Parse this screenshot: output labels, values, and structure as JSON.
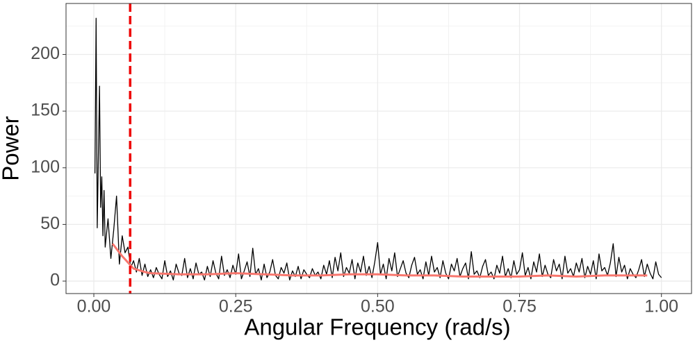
{
  "chart_data": {
    "type": "line",
    "x_label": "Angular Frequency (rad/s)",
    "y_label": "Power",
    "xlim": [
      -0.049,
      1.053
    ],
    "ylim": [
      -11,
      245
    ],
    "xticks": [
      {
        "value": 0,
        "label": "0.00"
      },
      {
        "value": 0.25,
        "label": "0.25"
      },
      {
        "value": 0.5,
        "label": "0.50"
      },
      {
        "value": 0.75,
        "label": "0.75"
      },
      {
        "value": 1,
        "label": "1.00"
      }
    ],
    "yticks": [
      0,
      50,
      100,
      150,
      200
    ],
    "x_minor_ticks": [
      0.125,
      0.375,
      0.625,
      0.875
    ],
    "y_minor_ticks": [
      25,
      75,
      125,
      175,
      225
    ],
    "grid": true,
    "vline": {
      "value": 0.064,
      "color": "#ee0000"
    },
    "series": [
      {
        "color": "#000000",
        "x": [
          0.002,
          0.004,
          0.006,
          0.008,
          0.01,
          0.012,
          0.014,
          0.016,
          0.018,
          0.02,
          0.025,
          0.03,
          0.035,
          0.04,
          0.045,
          0.05,
          0.055,
          0.06,
          0.065,
          0.07,
          0.075,
          0.08,
          0.085,
          0.09,
          0.095,
          0.1,
          0.105,
          0.11,
          0.115,
          0.12,
          0.125,
          0.13,
          0.135,
          0.14,
          0.145,
          0.15,
          0.155,
          0.16,
          0.165,
          0.17,
          0.175,
          0.18,
          0.185,
          0.19,
          0.195,
          0.2,
          0.205,
          0.21,
          0.215,
          0.22,
          0.225,
          0.23,
          0.235,
          0.24,
          0.245,
          0.25,
          0.255,
          0.26,
          0.265,
          0.27,
          0.275,
          0.28,
          0.285,
          0.29,
          0.295,
          0.3,
          0.305,
          0.31,
          0.315,
          0.32,
          0.325,
          0.33,
          0.335,
          0.34,
          0.345,
          0.35,
          0.355,
          0.36,
          0.365,
          0.37,
          0.375,
          0.38,
          0.385,
          0.39,
          0.395,
          0.4,
          0.405,
          0.41,
          0.415,
          0.42,
          0.425,
          0.43,
          0.435,
          0.44,
          0.445,
          0.45,
          0.455,
          0.46,
          0.465,
          0.47,
          0.475,
          0.48,
          0.485,
          0.49,
          0.495,
          0.5,
          0.505,
          0.51,
          0.515,
          0.52,
          0.525,
          0.53,
          0.535,
          0.54,
          0.545,
          0.55,
          0.555,
          0.56,
          0.565,
          0.57,
          0.575,
          0.58,
          0.585,
          0.59,
          0.595,
          0.6,
          0.605,
          0.61,
          0.615,
          0.62,
          0.625,
          0.63,
          0.635,
          0.64,
          0.645,
          0.65,
          0.655,
          0.66,
          0.665,
          0.67,
          0.675,
          0.68,
          0.685,
          0.69,
          0.695,
          0.7,
          0.705,
          0.71,
          0.715,
          0.72,
          0.725,
          0.73,
          0.735,
          0.74,
          0.745,
          0.75,
          0.755,
          0.76,
          0.765,
          0.77,
          0.775,
          0.78,
          0.785,
          0.79,
          0.795,
          0.8,
          0.805,
          0.81,
          0.815,
          0.82,
          0.825,
          0.83,
          0.835,
          0.84,
          0.845,
          0.85,
          0.855,
          0.86,
          0.865,
          0.87,
          0.875,
          0.88,
          0.885,
          0.89,
          0.895,
          0.9,
          0.905,
          0.91,
          0.915,
          0.92,
          0.925,
          0.93,
          0.935,
          0.94,
          0.945,
          0.95,
          0.955,
          0.96,
          0.965,
          0.97,
          0.975,
          0.98,
          0.985,
          0.99,
          0.995,
          1.0
        ],
        "values": [
          95,
          232,
          47,
          110,
          172,
          65,
          92,
          40,
          80,
          30,
          55,
          20,
          45,
          75,
          15,
          40,
          25,
          30,
          12,
          18,
          8,
          20,
          5,
          15,
          4,
          10,
          3,
          12,
          6,
          2,
          18,
          4,
          9,
          1,
          15,
          7,
          5,
          20,
          3,
          11,
          2,
          16,
          6,
          8,
          1,
          13,
          4,
          18,
          7,
          2,
          22,
          5,
          10,
          3,
          14,
          6,
          24,
          2,
          9,
          17,
          4,
          29,
          6,
          11,
          1,
          15,
          3,
          8,
          19,
          5,
          2,
          12,
          7,
          16,
          1,
          9,
          4,
          13,
          2,
          10,
          6,
          3,
          11,
          5,
          8,
          2,
          14,
          6,
          18,
          3,
          21,
          9,
          25,
          4,
          12,
          7,
          19,
          2,
          16,
          8,
          22,
          5,
          13,
          3,
          17,
          34,
          6,
          15,
          2,
          20,
          9,
          25,
          4,
          11,
          18,
          7,
          3,
          14,
          21,
          6,
          10,
          2,
          17,
          5,
          22,
          8,
          12,
          3,
          18,
          7,
          2,
          15,
          9,
          20,
          4,
          11,
          16,
          2,
          26,
          6,
          9,
          3,
          13,
          19,
          5,
          8,
          2,
          14,
          7,
          22,
          4,
          11,
          3,
          18,
          6,
          10,
          25,
          5,
          12,
          2,
          17,
          8,
          24,
          4,
          14,
          6,
          3,
          19,
          9,
          15,
          2,
          22,
          7,
          11,
          4,
          16,
          8,
          20,
          3,
          13,
          6,
          18,
          2,
          24,
          9,
          12,
          5,
          16,
          33,
          4,
          21,
          8,
          14,
          2,
          11,
          6,
          3,
          10,
          19,
          4,
          15,
          7,
          2,
          17,
          6,
          3
        ]
      },
      {
        "color": "#f8766d",
        "x": [
          0.033,
          0.05,
          0.07,
          0.09,
          0.1,
          0.15,
          0.2,
          0.25,
          0.3,
          0.35,
          0.4,
          0.45,
          0.5,
          0.55,
          0.6,
          0.65,
          0.7,
          0.75,
          0.8,
          0.85,
          0.9,
          0.95,
          0.975
        ],
        "values": [
          33,
          22,
          11,
          8,
          7,
          6,
          6,
          7,
          6,
          5,
          5,
          6,
          6,
          5,
          5,
          4,
          4,
          4,
          5,
          4,
          5,
          5,
          5
        ]
      }
    ]
  }
}
